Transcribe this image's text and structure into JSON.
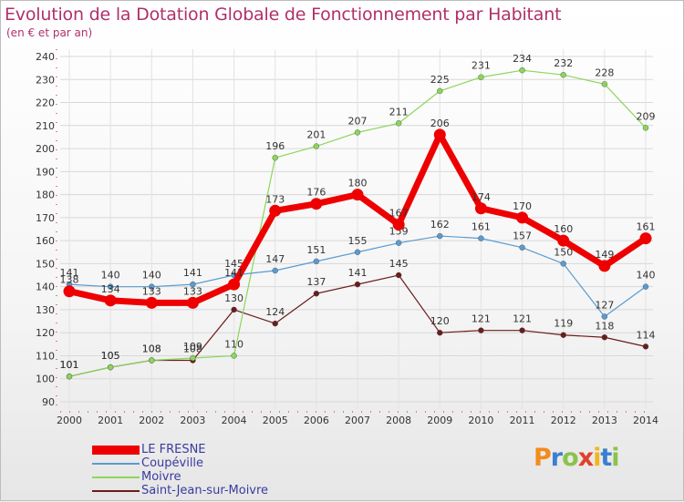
{
  "header": {
    "title": "Evolution de la Dotation Globale de Fonctionnement par Habitant",
    "subtitle": "(en € et par an)"
  },
  "logo": {
    "text": "Proxiti",
    "colors": [
      "#f28c1c",
      "#3a7fd0",
      "#8bc34a",
      "#e0402c",
      "#f2b61c",
      "#3a7fd0",
      "#8bc34a"
    ]
  },
  "chart_data": {
    "type": "line",
    "x": [
      "2000",
      "2001",
      "2002",
      "2003",
      "2004",
      "2005",
      "2006",
      "2007",
      "2008",
      "2009",
      "2010",
      "2011",
      "2012",
      "2013",
      "2014"
    ],
    "ylim": [
      90,
      240
    ],
    "yticks": [
      90,
      100,
      110,
      120,
      130,
      140,
      150,
      160,
      170,
      180,
      190,
      200,
      210,
      220,
      230,
      240
    ],
    "grid": true,
    "legend_position": "bottom-left",
    "series": [
      {
        "name": "Saint-Jean-sur-Moivre",
        "color": "#6b1c1c",
        "values": [
          101,
          105,
          108,
          108,
          130,
          124,
          137,
          141,
          145,
          120,
          121,
          121,
          119,
          118,
          114
        ]
      },
      {
        "name": "Moivre",
        "color": "#8bd65a",
        "values": [
          101,
          105,
          108,
          109,
          110,
          196,
          201,
          207,
          211,
          225,
          231,
          234,
          232,
          228,
          209
        ]
      },
      {
        "name": "Coupéville",
        "color": "#5a9bd0",
        "values": [
          141,
          140,
          140,
          141,
          145,
          147,
          151,
          155,
          159,
          162,
          161,
          157,
          150,
          127,
          140
        ]
      },
      {
        "name": "LE FRESNE",
        "color": "#ee0000",
        "values": [
          138,
          134,
          133,
          133,
          141,
          173,
          176,
          180,
          167,
          206,
          174,
          170,
          160,
          149,
          161
        ]
      }
    ],
    "legend_order": [
      "LE FRESNE",
      "Coupéville",
      "Moivre",
      "Saint-Jean-sur-Moivre"
    ]
  }
}
